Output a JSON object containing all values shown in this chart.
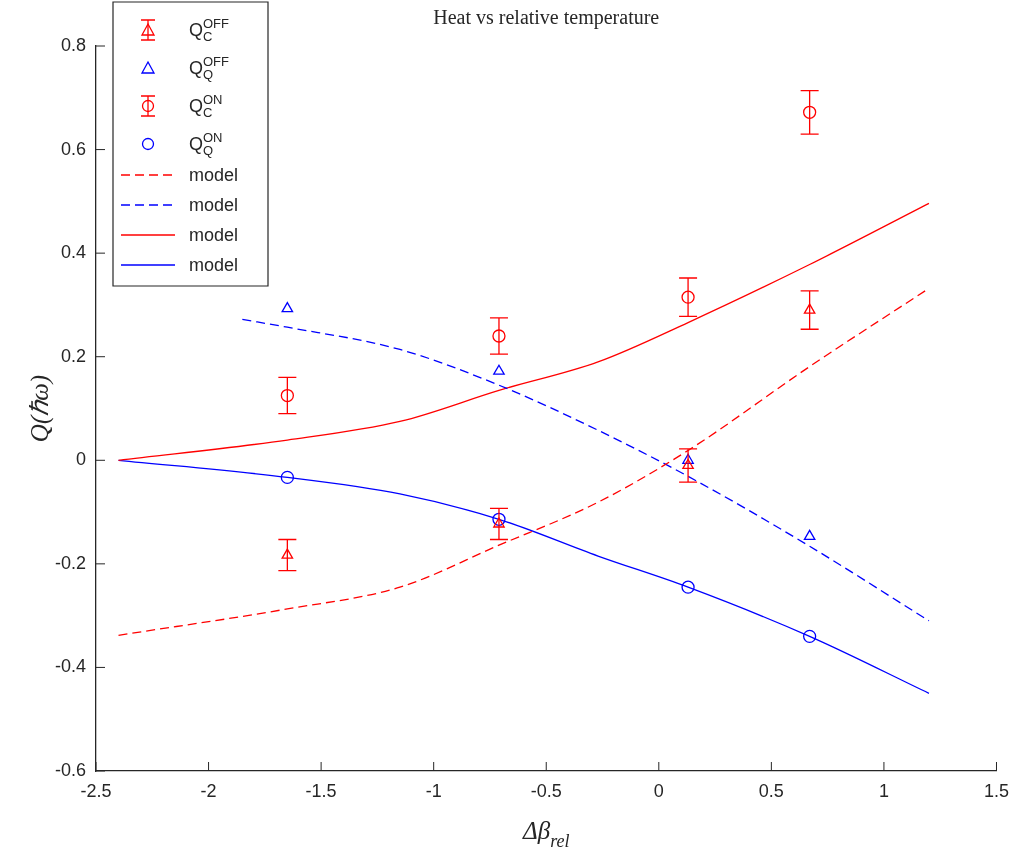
{
  "chart_data": {
    "type": "scatter",
    "title": "Heat vs relative temperature",
    "xlabel": "Δβ$_{rel}$",
    "ylabel": "Q(ℏω)",
    "xlim": [
      -2.5,
      1.5
    ],
    "xticks": [
      -2.5,
      -2,
      -1.5,
      -1,
      -0.5,
      0,
      0.5,
      1,
      1.5
    ],
    "ylim": [
      -0.6,
      0.8
    ],
    "yticks": [
      -0.6,
      -0.4,
      -0.2,
      0,
      0.2,
      0.4,
      0.6,
      0.8
    ],
    "grid": false,
    "legend": "top left",
    "series": [
      {
        "name": "Q$_{C}$$^{OFF}$",
        "type": "scatter",
        "marker": "triangle",
        "color": "#ff0000",
        "x": [
          -1.65,
          -0.71,
          0.13,
          0.67
        ],
        "values": [
          -0.183,
          -0.123,
          -0.01,
          0.29
        ],
        "errors": [
          0.03,
          0.03,
          0.032,
          0.037
        ]
      },
      {
        "name": "Q$_{Q}$$^{OFF}$",
        "type": "scatter",
        "marker": "triangle",
        "color": "#0000ff",
        "x": [
          -1.65,
          -0.71,
          0.13,
          0.67
        ],
        "values": [
          0.293,
          0.172,
          0,
          -0.147
        ]
      },
      {
        "name": "Q$_{C}$$^{ON}$",
        "type": "scatter",
        "marker": "circle",
        "color": "#ff0000",
        "x": [
          -1.65,
          -0.71,
          0.13,
          0.67
        ],
        "values": [
          0.125,
          0.24,
          0.315,
          0.672
        ],
        "errors": [
          0.035,
          0.035,
          0.037,
          0.042
        ]
      },
      {
        "name": "Q$_{Q}$$^{ON}$",
        "type": "scatter",
        "marker": "circle",
        "color": "#0000ff",
        "x": [
          -1.65,
          -0.71,
          0.13,
          0.67
        ],
        "values": [
          -0.033,
          -0.114,
          -0.245,
          -0.34
        ]
      },
      {
        "name": "model",
        "type": "line",
        "line_style": "dashed",
        "marker": "none",
        "color": "#ff0000",
        "x": [
          -2.4,
          -1.65,
          -1.15,
          -0.71,
          -0.27,
          0.13,
          0.67,
          1.2
        ],
        "values": [
          -0.338,
          -0.287,
          -0.245,
          -0.164,
          -0.081,
          0.019,
          0.181,
          0.332
        ]
      },
      {
        "name": "model",
        "type": "line",
        "line_style": "dashed",
        "marker": "none",
        "color": "#0000ff",
        "x": [
          -1.85,
          -1.65,
          -1.15,
          -0.71,
          -0.27,
          0.13,
          0.67,
          1.2
        ],
        "values": [
          0.272,
          0.257,
          0.214,
          0.145,
          0.058,
          -0.031,
          -0.166,
          -0.31
        ]
      },
      {
        "name": "model",
        "type": "line",
        "line_style": "solid",
        "marker": "none",
        "color": "#ff0000",
        "x": [
          -2.4,
          -1.65,
          -1.15,
          -0.71,
          -0.27,
          0.13,
          0.67,
          1.2
        ],
        "values": [
          0,
          0.039,
          0.075,
          0.135,
          0.19,
          0.266,
          0.378,
          0.496
        ]
      },
      {
        "name": "model",
        "type": "line",
        "line_style": "solid",
        "marker": "none",
        "color": "#0000ff",
        "x": [
          -2.4,
          -1.65,
          -1.15,
          -0.71,
          -0.27,
          0.13,
          0.67,
          1.2
        ],
        "values": [
          0,
          -0.033,
          -0.065,
          -0.114,
          -0.185,
          -0.245,
          -0.34,
          -0.45
        ]
      }
    ]
  }
}
